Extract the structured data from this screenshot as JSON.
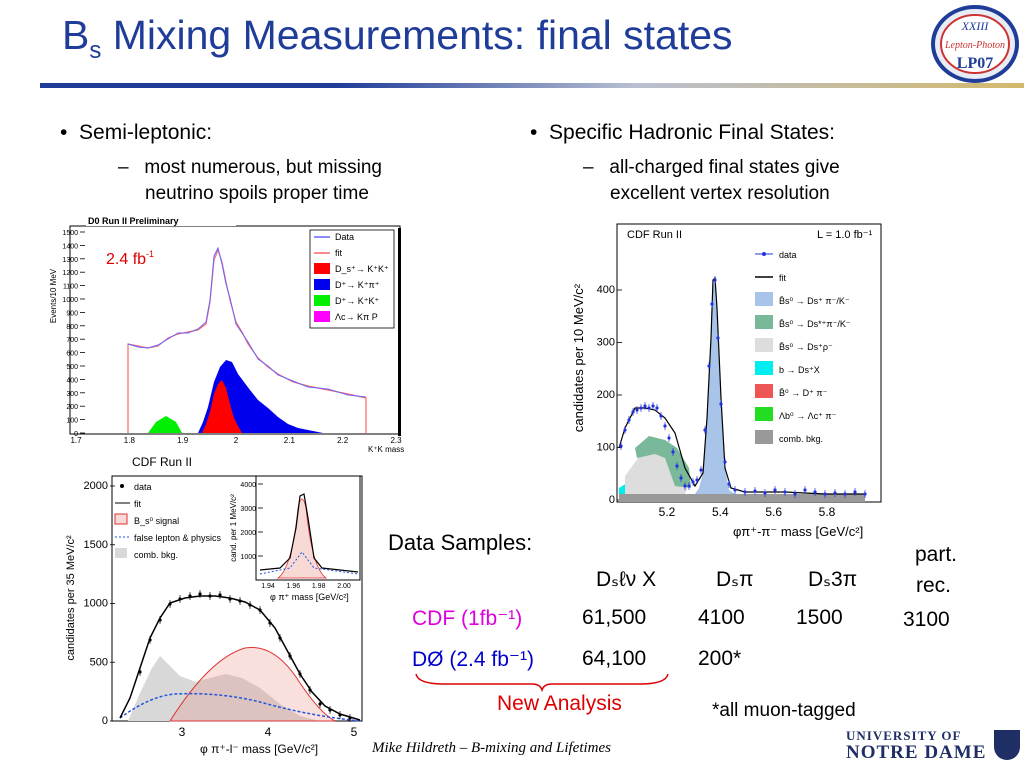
{
  "slide": {
    "title_main": "B",
    "title_sub": "s",
    "title_rest": " Mixing Measurements: final states",
    "conference_logo": {
      "line1": "XXIII",
      "line2": "Lepton-Photon",
      "line3": "LP07"
    },
    "footer": "Mike Hildreth – B-mixing and Lifetimes",
    "nd_logo": {
      "line1": "UNIVERSITY OF",
      "line2": "NOTRE DAME"
    }
  },
  "left_col": {
    "bullet": "Semi-leptonic:",
    "sub_line1": "most numerous, but missing",
    "sub_line2": "neutrino spoils proper time"
  },
  "right_col": {
    "bullet": "Specific Hadronic Final States:",
    "sub_line1": "all-charged final states give",
    "sub_line2": "excellent vertex resolution"
  },
  "d0_plot": {
    "header": "D0 Run II Preliminary",
    "lumi": "2.4 fb",
    "lumi_sup": "-1",
    "ylabel": "Events/10 MeV",
    "xlabel": "K⁺K mass",
    "y_ticks": [
      "1500",
      "1400",
      "1300",
      "1200",
      "1100",
      "1000",
      "900",
      "800",
      "700",
      "600",
      "500",
      "400",
      "300",
      "200",
      "100",
      "0"
    ],
    "x_ticks": [
      "1.7",
      "1.8",
      "1.9",
      "2",
      "2.1",
      "2.2",
      "2.3"
    ],
    "legend": [
      "Data",
      "fit",
      "D_s⁺→ K⁺K⁺",
      "D⁺→ K⁺π⁺",
      "D⁺→ K⁺K⁺",
      "Λc→ Kπ P"
    ],
    "colors": {
      "data": "#6666ff",
      "fit": "#ff6666",
      "ds": "#ff0000",
      "dplus": "#0000ee",
      "dkk": "#00ee00",
      "lambda": "#ff00ff"
    }
  },
  "cdf_sl_plot": {
    "header": "CDF Run II",
    "ylabel": "candidates per 35 MeV/c²",
    "xlabel": "φ π⁺-l⁻ mass [GeV/c²]",
    "y_ticks": [
      "2000",
      "1500",
      "1000",
      "500",
      "0"
    ],
    "x_ticks": [
      "3",
      "4",
      "5"
    ],
    "legend": [
      "data",
      "fit",
      "B_s⁰ signal",
      "false lepton & physics",
      "comb. bkg."
    ],
    "inset_ylabel": "cand. per 1 MeV/c²",
    "inset_xlabel": "φ π⁺ mass [GeV/c²]",
    "inset_y_ticks": [
      "4000",
      "3000",
      "2000",
      "1000"
    ],
    "inset_x_ticks": [
      "1.94",
      "1.96",
      "1.98",
      "2.00"
    ]
  },
  "cdf_had_plot": {
    "header": "CDF Run II",
    "lumi": "L = 1.0 fb⁻¹",
    "ylabel": "candidates per 10 MeV/c²",
    "xlabel": "φπ⁺-π⁻ mass [GeV/c²]",
    "y_ticks": [
      "400",
      "300",
      "200",
      "100",
      "0"
    ],
    "x_ticks": [
      "5.2",
      "5.4",
      "5.6",
      "5.8"
    ],
    "legend": [
      "data",
      "fit",
      "B̄s⁰ → Ds⁺ π⁻/K⁻",
      "B̄s⁰ → Ds*⁺π⁻/K⁻",
      "B̄s⁰ → Ds⁺ρ⁻",
      "b → Ds⁺X",
      "B̄⁰ → D⁺ π⁻",
      "Λb⁰ → Λc⁺ π⁻",
      "comb. bkg."
    ],
    "colors": {
      "sig": "#a8c4e8",
      "ds_star": "#7ab89a",
      "rho": "#dddddd",
      "bx": "#00eeee",
      "b0": "#ee5555",
      "lb": "#22dd22",
      "comb": "#999999"
    }
  },
  "samples": {
    "label": "Data Samples:",
    "headers": [
      "Dₛℓν X",
      "Dₛπ",
      "Dₛ3π",
      "part.",
      "rec."
    ],
    "cdf_label": "CDF (1fb⁻¹)",
    "d0_label": "DØ (2.4 fb⁻¹)",
    "cdf_values": [
      "61,500",
      "4100",
      "1500",
      "3100"
    ],
    "d0_values": [
      "64,100",
      "200*"
    ],
    "new_analysis": "New Analysis",
    "note": "*all muon-tagged",
    "colors": {
      "cdf": "#dd00dd",
      "d0": "#0000cc",
      "new": "#dd0000"
    }
  }
}
